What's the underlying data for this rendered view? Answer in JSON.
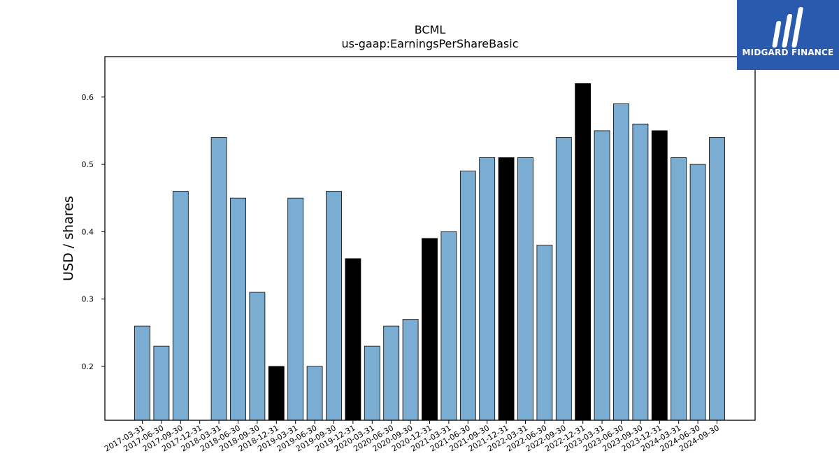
{
  "logo": {
    "text": "MIDGARD FINANCE",
    "icon": "midgard-m-logo-icon",
    "bg_color": "#2a5aad"
  },
  "chart_data": {
    "type": "bar",
    "title": "BCML",
    "subtitle": "us-gaap:EarningsPerShareBasic",
    "xlabel": "",
    "ylabel": "USD / shares",
    "ylim": [
      0.12,
      0.66
    ],
    "yticks": [
      0.2,
      0.3,
      0.4,
      0.5,
      0.6
    ],
    "grid": false,
    "colors": {
      "default": "#7bacd1",
      "highlight": "#000000",
      "edge": "#000000"
    },
    "categories": [
      "2017-03-31",
      "2017-06-30",
      "2017-09-30",
      "2017-12-31",
      "2018-03-31",
      "2018-06-30",
      "2018-09-30",
      "2018-12-31",
      "2019-03-31",
      "2019-06-30",
      "2019-09-30",
      "2019-12-31",
      "2020-03-31",
      "2020-06-30",
      "2020-09-30",
      "2020-12-31",
      "2021-03-31",
      "2021-06-30",
      "2021-09-30",
      "2021-12-31",
      "2022-03-31",
      "2022-06-30",
      "2022-09-30",
      "2022-12-31",
      "2023-03-31",
      "2023-06-30",
      "2023-09-30",
      "2023-12-31",
      "2024-03-31",
      "2024-06-30",
      "2024-09-30"
    ],
    "values": [
      0.26,
      0.23,
      0.46,
      null,
      0.54,
      0.45,
      0.31,
      0.2,
      0.45,
      0.2,
      0.46,
      0.36,
      0.23,
      0.26,
      0.27,
      0.39,
      0.4,
      0.49,
      0.51,
      0.51,
      0.51,
      0.38,
      0.54,
      0.62,
      0.55,
      0.59,
      0.56,
      0.55,
      0.51,
      0.5,
      0.54
    ],
    "highlighted": [
      false,
      false,
      false,
      false,
      false,
      false,
      false,
      true,
      false,
      false,
      false,
      true,
      false,
      false,
      false,
      true,
      false,
      false,
      false,
      true,
      false,
      false,
      false,
      true,
      false,
      false,
      false,
      true,
      false,
      false,
      false
    ]
  }
}
